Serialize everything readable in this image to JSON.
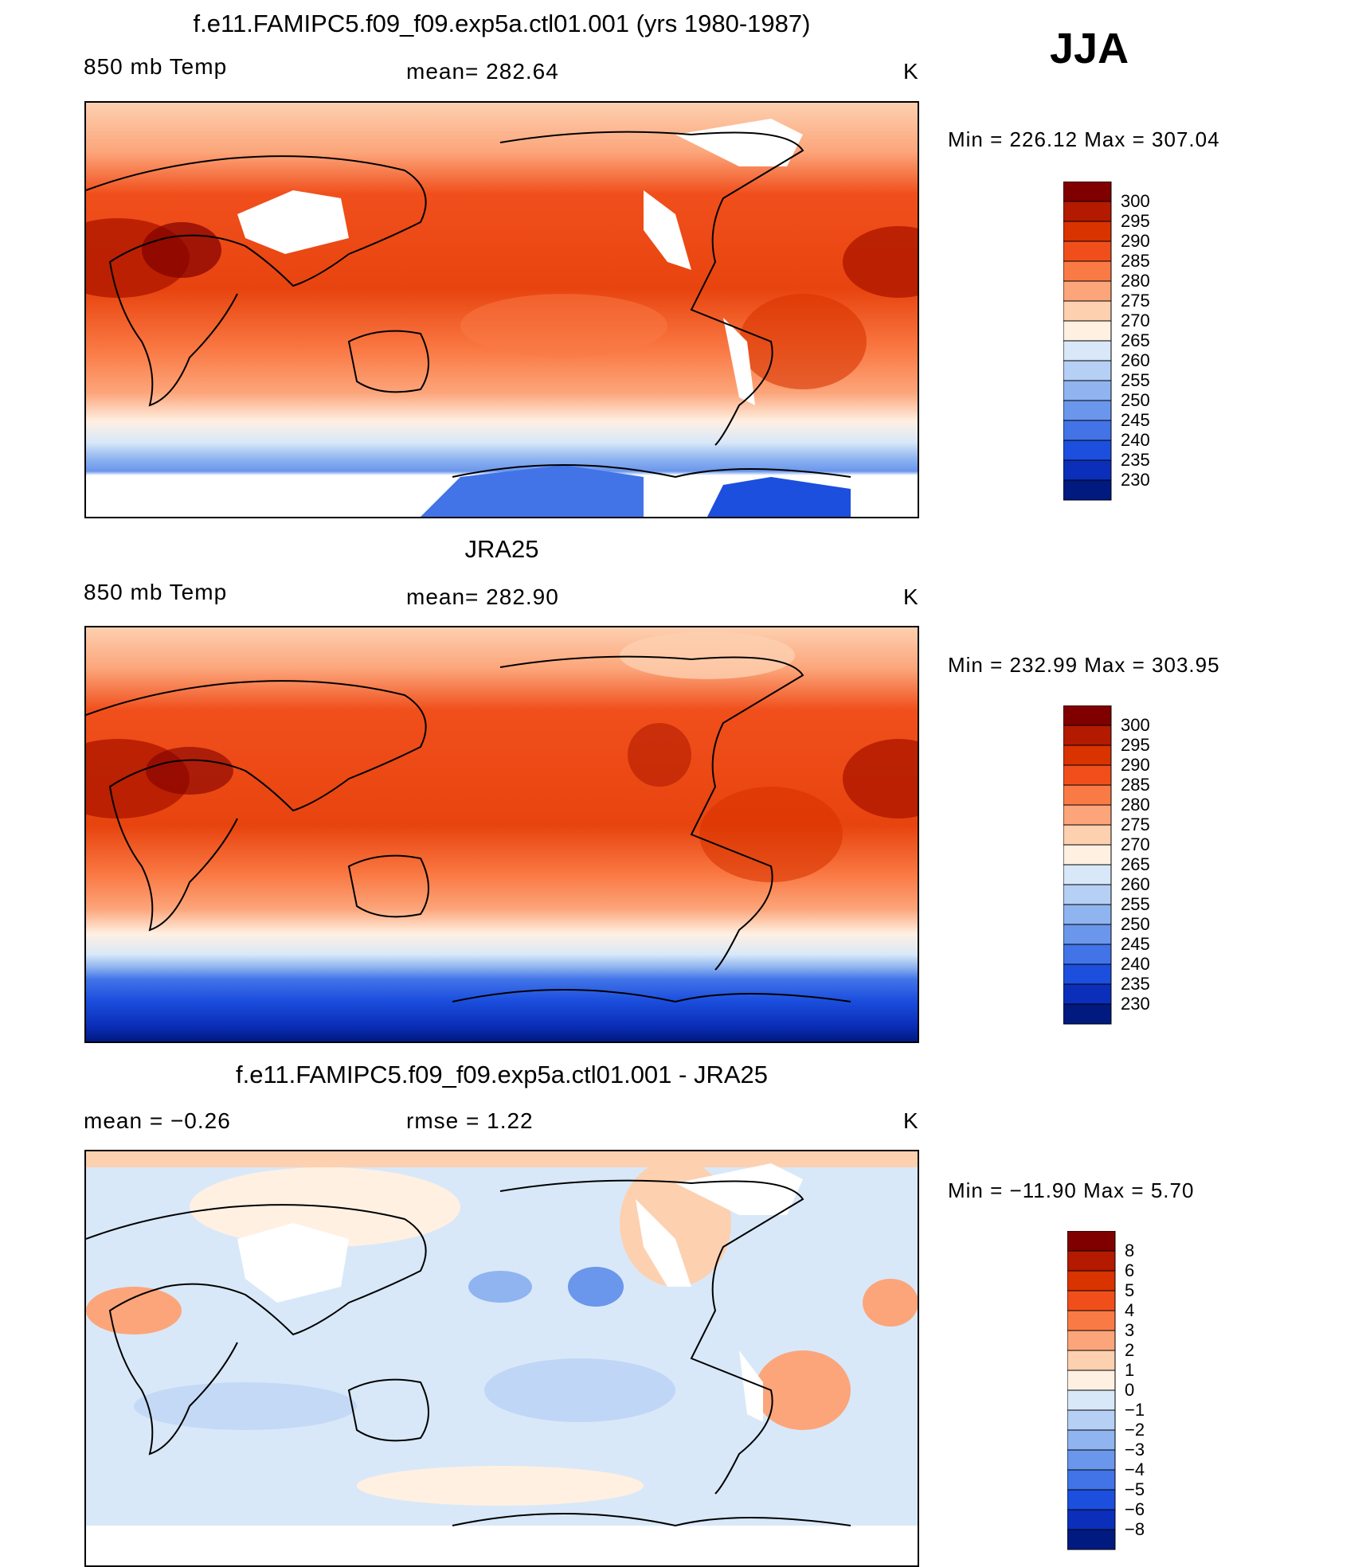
{
  "season": "JJA",
  "panels": [
    {
      "title": "f.e11.FAMIPC5.f09_f09.exp5a.ctl01.001 (yrs 1980-1987)",
      "left_label": "850 mb Temp",
      "center_label": "mean=  282.64",
      "units": "K",
      "minmax": "Min  =  226.12  Max  =  307.04",
      "colorbar": {
        "labels": [
          "300",
          "295",
          "290",
          "285",
          "280",
          "275",
          "270",
          "265",
          "260",
          "255",
          "250",
          "245",
          "240",
          "235",
          "230"
        ],
        "colors": [
          "#800000",
          "#b31a00",
          "#d93300",
          "#f04f1c",
          "#fa7a45",
          "#fca57a",
          "#fdd0b0",
          "#fff0e2",
          "#d8e8f8",
          "#b6cff5",
          "#8fb4f0",
          "#6a96ec",
          "#4274e8",
          "#1c4fde",
          "#0b2fba",
          "#001a80"
        ]
      }
    },
    {
      "title": "JRA25",
      "left_label": "850 mb Temp",
      "center_label": "mean=  282.90",
      "units": "K",
      "minmax": "Min  =  232.99  Max  =  303.95",
      "colorbar": {
        "labels": [
          "300",
          "295",
          "290",
          "285",
          "280",
          "275",
          "270",
          "265",
          "260",
          "255",
          "250",
          "245",
          "240",
          "235",
          "230"
        ],
        "colors": [
          "#800000",
          "#b31a00",
          "#d93300",
          "#f04f1c",
          "#fa7a45",
          "#fca57a",
          "#fdd0b0",
          "#fff0e2",
          "#d8e8f8",
          "#b6cff5",
          "#8fb4f0",
          "#6a96ec",
          "#4274e8",
          "#1c4fde",
          "#0b2fba",
          "#001a80"
        ]
      }
    },
    {
      "title": "f.e11.FAMIPC5.f09_f09.exp5a.ctl01.001 - JRA25",
      "left_label": "mean =   −0.26",
      "center_label": "rmse =     1.22",
      "units": "K",
      "minmax": "Min  =  −11.90  Max  =      5.70",
      "colorbar": {
        "labels": [
          "8",
          "6",
          "5",
          "4",
          "3",
          "2",
          "1",
          "0",
          "−1",
          "−2",
          "−3",
          "−4",
          "−5",
          "−6",
          "−8"
        ],
        "colors": [
          "#800000",
          "#b31a00",
          "#d93300",
          "#f04f1c",
          "#fa7a45",
          "#fca57a",
          "#fdd0b0",
          "#fff0e2",
          "#d8e8f8",
          "#b6cff5",
          "#8fb4f0",
          "#6a96ec",
          "#4274e8",
          "#1c4fde",
          "#0b2fba",
          "#001a80"
        ]
      }
    }
  ]
}
